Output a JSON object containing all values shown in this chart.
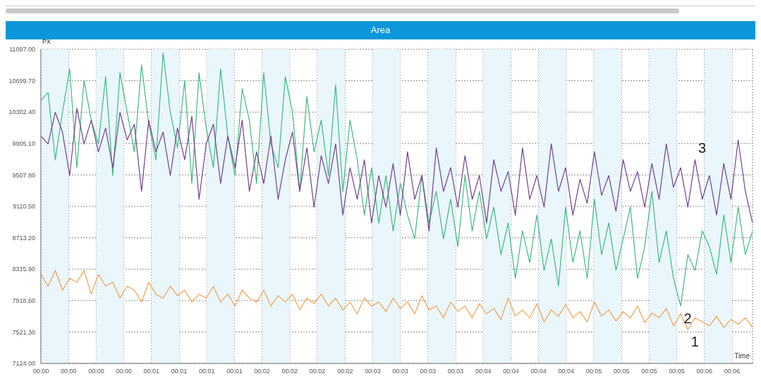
{
  "chart_data": {
    "type": "line",
    "title": "Area",
    "xlabel": "Time",
    "ylabel": "PX",
    "grid": true,
    "xlim": [
      -0.375,
      6.06
    ],
    "ylim": [
      7124,
      11097
    ],
    "yticks": [
      {
        "value": 7124,
        "label": "7124.00"
      },
      {
        "value": 7521.3,
        "label": "7521.30"
      },
      {
        "value": 7918.6,
        "label": "7918.60"
      },
      {
        "value": 8315.9,
        "label": "8315.90"
      },
      {
        "value": 8713.2,
        "label": "8713.20"
      },
      {
        "value": 9110.5,
        "label": "9110.50"
      },
      {
        "value": 9507.8,
        "label": "9507.80"
      },
      {
        "value": 9905.1,
        "label": "9905.10"
      },
      {
        "value": 10302.4,
        "label": "10302.40"
      },
      {
        "value": 10699.7,
        "label": "10699.70"
      },
      {
        "value": 11097,
        "label": "11097.00"
      }
    ],
    "xticks": [
      {
        "value": -0.375,
        "label": "00:00"
      },
      {
        "value": -0.125,
        "label": "00:00"
      },
      {
        "value": 0.125,
        "label": "00:00"
      },
      {
        "value": 0.375,
        "label": "00:00"
      },
      {
        "value": 0.625,
        "label": "00:01"
      },
      {
        "value": 0.875,
        "label": "00:01"
      },
      {
        "value": 1.125,
        "label": "00:01"
      },
      {
        "value": 1.375,
        "label": "00:01"
      },
      {
        "value": 1.625,
        "label": "00:02"
      },
      {
        "value": 1.875,
        "label": "00:02"
      },
      {
        "value": 2.125,
        "label": "00:02"
      },
      {
        "value": 2.375,
        "label": "00:02"
      },
      {
        "value": 2.625,
        "label": "00:03"
      },
      {
        "value": 2.875,
        "label": "00:03"
      },
      {
        "value": 3.125,
        "label": "00:03"
      },
      {
        "value": 3.375,
        "label": "00:03"
      },
      {
        "value": 3.625,
        "label": "00:04"
      },
      {
        "value": 3.875,
        "label": "00:04"
      },
      {
        "value": 4.125,
        "label": "00:04"
      },
      {
        "value": 4.375,
        "label": "00:04"
      },
      {
        "value": 4.625,
        "label": "00:05"
      },
      {
        "value": 4.875,
        "label": "00:05"
      },
      {
        "value": 5.125,
        "label": "00:05"
      },
      {
        "value": 5.375,
        "label": "00:05"
      },
      {
        "value": 5.625,
        "label": "00:06"
      },
      {
        "value": 5.875,
        "label": "00:06"
      }
    ],
    "bands": [
      {
        "axis": "x",
        "from": -0.375,
        "to": -0.125,
        "color": "#e9f6fb"
      },
      {
        "axis": "x",
        "from": 0.125,
        "to": 0.375,
        "color": "#e9f6fb"
      },
      {
        "axis": "x",
        "from": 0.625,
        "to": 0.875,
        "color": "#e9f6fb"
      },
      {
        "axis": "x",
        "from": 1.125,
        "to": 1.375,
        "color": "#e9f6fb"
      },
      {
        "axis": "x",
        "from": 1.625,
        "to": 1.875,
        "color": "#e9f6fb"
      },
      {
        "axis": "x",
        "from": 2.125,
        "to": 2.375,
        "color": "#e9f6fb"
      },
      {
        "axis": "x",
        "from": 2.625,
        "to": 2.875,
        "color": "#e9f6fb"
      },
      {
        "axis": "x",
        "from": 3.125,
        "to": 3.375,
        "color": "#e9f6fb"
      },
      {
        "axis": "x",
        "from": 3.625,
        "to": 3.875,
        "color": "#e9f6fb"
      },
      {
        "axis": "x",
        "from": 4.125,
        "to": 4.375,
        "color": "#e9f6fb"
      },
      {
        "axis": "x",
        "from": 4.625,
        "to": 4.875,
        "color": "#e9f6fb"
      },
      {
        "axis": "x",
        "from": 5.125,
        "to": 5.375,
        "color": "#e9f6fb"
      },
      {
        "axis": "x",
        "from": 5.625,
        "to": 5.875,
        "color": "#e9f6fb"
      }
    ],
    "x": [
      -0.375,
      -0.31,
      -0.245,
      -0.18,
      -0.115,
      -0.05,
      0.015,
      0.08,
      0.145,
      0.21,
      0.275,
      0.34,
      0.405,
      0.47,
      0.535,
      0.6,
      0.665,
      0.73,
      0.795,
      0.86,
      0.925,
      0.99,
      1.055,
      1.12,
      1.185,
      1.25,
      1.315,
      1.38,
      1.445,
      1.51,
      1.575,
      1.64,
      1.705,
      1.77,
      1.835,
      1.9,
      1.965,
      2.03,
      2.095,
      2.16,
      2.225,
      2.29,
      2.355,
      2.42,
      2.485,
      2.55,
      2.615,
      2.68,
      2.745,
      2.81,
      2.875,
      2.94,
      3.005,
      3.07,
      3.135,
      3.2,
      3.265,
      3.33,
      3.395,
      3.46,
      3.525,
      3.59,
      3.655,
      3.72,
      3.785,
      3.85,
      3.915,
      3.98,
      4.045,
      4.11,
      4.175,
      4.24,
      4.305,
      4.37,
      4.435,
      4.5,
      4.565,
      4.63,
      4.695,
      4.76,
      4.825,
      4.89,
      4.955,
      5.02,
      5.085,
      5.15,
      5.215,
      5.28,
      5.345,
      5.41,
      5.475,
      5.54,
      5.605,
      5.67,
      5.735,
      5.8,
      5.865,
      5.93,
      5.995,
      6.06
    ],
    "series": [
      {
        "name": "1",
        "color": "#f2a04e",
        "values": [
          8250,
          8100,
          8300,
          8050,
          8200,
          8150,
          8300,
          8000,
          8250,
          8100,
          8150,
          7950,
          8100,
          8050,
          7900,
          8150,
          8000,
          7950,
          8100,
          7980,
          8050,
          7900,
          8000,
          7950,
          8100,
          7900,
          8000,
          7850,
          8050,
          7950,
          7900,
          8050,
          7850,
          7980,
          7900,
          8000,
          7800,
          7950,
          7880,
          8000,
          7850,
          7950,
          7800,
          7900,
          7750,
          7950,
          7850,
          7900,
          7780,
          7950,
          7820,
          7900,
          7750,
          7980,
          7800,
          7850,
          7700,
          7900,
          7780,
          7850,
          7700,
          7880,
          7750,
          7820,
          7680,
          7950,
          7720,
          7800,
          7700,
          7880,
          7650,
          7800,
          7720,
          7870,
          7700,
          7780,
          7650,
          7900,
          7720,
          7800,
          7660,
          7780,
          7700,
          7850,
          7640,
          7760,
          7700,
          7820,
          7600,
          7750,
          7550,
          7700,
          7650,
          7600,
          7720,
          7580,
          7680,
          7620,
          7700,
          7580
        ]
      },
      {
        "name": "2",
        "color": "#3dba82",
        "values": [
          10450,
          10550,
          9700,
          10300,
          10850,
          9600,
          10700,
          10200,
          9900,
          10750,
          9500,
          10800,
          10300,
          9800,
          10900,
          10150,
          9700,
          11050,
          10300,
          9850,
          10700,
          9400,
          10800,
          10100,
          9600,
          10850,
          10000,
          9500,
          10600,
          10200,
          9400,
          10800,
          9900,
          9600,
          10750,
          10300,
          9300,
          10500,
          9800,
          10200,
          9500,
          10650,
          9300,
          10200,
          9700,
          9000,
          9600,
          8900,
          9500,
          8800,
          9400,
          9000,
          8700,
          9500,
          8900,
          9300,
          8700,
          9200,
          8600,
          9500,
          8800,
          9300,
          8700,
          9100,
          8500,
          8900,
          8200,
          8800,
          8400,
          9000,
          8300,
          8700,
          8100,
          9100,
          8400,
          8800,
          8200,
          9200,
          8500,
          8900,
          8300,
          8700,
          9100,
          8200,
          8600,
          9300,
          8400,
          8800,
          8200,
          7850,
          8500,
          8300,
          8800,
          8600,
          8250,
          9000,
          8400,
          9100,
          8500,
          8800
        ]
      },
      {
        "name": "3",
        "color": "#70418f",
        "values": [
          10000,
          9900,
          10300,
          10050,
          9500,
          10350,
          9900,
          10200,
          9800,
          10100,
          9600,
          10300,
          9950,
          10150,
          9300,
          10200,
          9800,
          10050,
          9500,
          10100,
          9700,
          10250,
          9200,
          9900,
          10150,
          9400,
          10000,
          9600,
          10200,
          9300,
          9800,
          9400,
          10000,
          9200,
          9700,
          10050,
          9300,
          9850,
          9100,
          9750,
          9400,
          9900,
          9000,
          9600,
          9200,
          9700,
          8900,
          9500,
          9100,
          9650,
          9000,
          9800,
          9200,
          9500,
          8800,
          9850,
          9300,
          9600,
          9100,
          9750,
          9200,
          9500,
          8900,
          9700,
          9300,
          9550,
          9000,
          9850,
          9200,
          9500,
          9100,
          9900,
          9300,
          9600,
          9000,
          9450,
          9150,
          9800,
          9250,
          9500,
          9050,
          9700,
          9300,
          9550,
          9100,
          9650,
          9200,
          9900,
          9350,
          9600,
          9100,
          9700,
          9200,
          9500,
          9000,
          9650,
          9200,
          9950,
          9300,
          8900
        ]
      }
    ]
  }
}
